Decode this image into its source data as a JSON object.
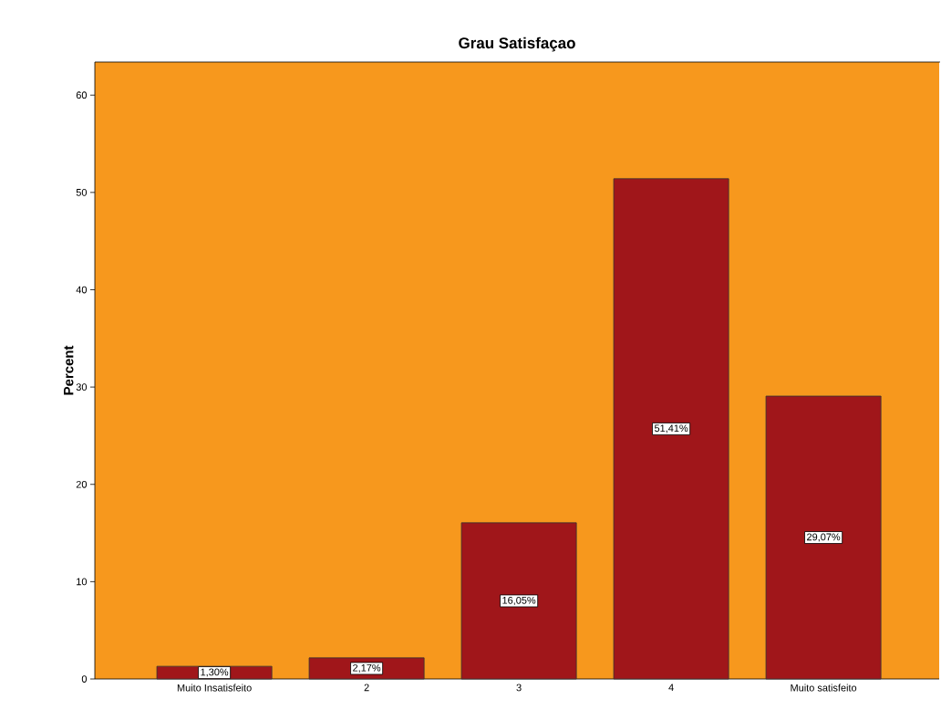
{
  "chart_data": {
    "type": "bar",
    "title": "Grau Satisfaçao",
    "ylabel": "Percent",
    "categories": [
      "Muito Insatisfeito",
      "2",
      "3",
      "4",
      "Muito satisfeito"
    ],
    "values": [
      1.3,
      2.17,
      16.05,
      51.41,
      29.07
    ],
    "value_labels": [
      "1,30%",
      "2,17%",
      "16,05%",
      "51,41%",
      "29,07%"
    ],
    "color": "#a0161a",
    "ylim": [
      0,
      63.4
    ],
    "yticks": [
      0,
      10,
      20,
      30,
      40,
      50,
      60
    ]
  }
}
